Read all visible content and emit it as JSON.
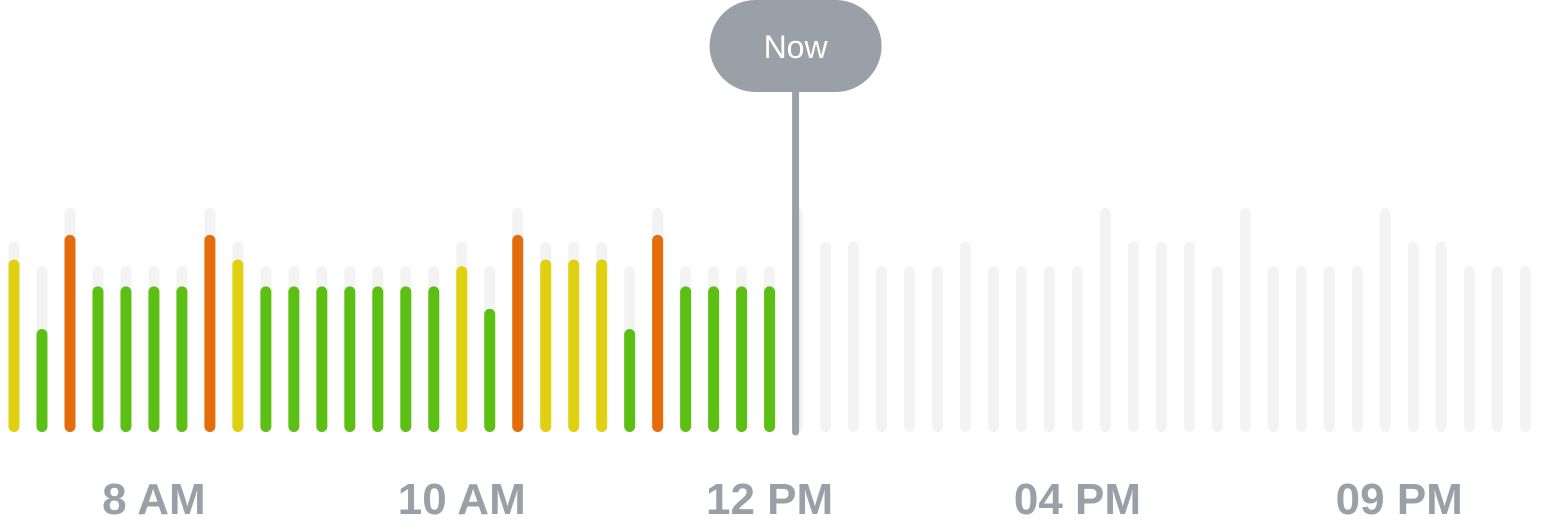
{
  "chart_data": {
    "type": "bar",
    "title": "",
    "xlabel": "",
    "ylabel": "",
    "ylim": [
      0,
      10
    ],
    "now_label": "Now",
    "now_index": 28,
    "x_ticks": [
      {
        "label": "8 AM",
        "index": 5
      },
      {
        "label": "10 AM",
        "index": 16
      },
      {
        "label": "12 PM",
        "index": 27
      },
      {
        "label": "04 PM",
        "index": 38
      },
      {
        "label": "09 PM",
        "index": 49.5
      }
    ],
    "capacity": [
      8.5,
      7.4,
      10,
      7.4,
      7.4,
      7.4,
      7.4,
      10,
      8.5,
      7.4,
      7.4,
      7.4,
      7.4,
      7.4,
      7.4,
      7.4,
      8.5,
      7.4,
      10,
      8.5,
      8.5,
      8.5,
      7.4,
      10,
      7.4,
      7.4,
      7.4,
      7.4,
      10,
      8.5,
      8.5,
      7.4,
      7.4,
      7.4,
      8.5,
      7.4,
      7.4,
      7.4,
      7.4,
      10,
      8.5,
      8.5,
      8.5,
      7.4,
      10,
      7.4,
      7.4,
      7.4,
      7.4,
      10,
      8.5,
      8.5,
      7.4,
      7.4,
      7.4
    ],
    "values": [
      7.7,
      4.6,
      8.8,
      6.5,
      6.5,
      6.5,
      6.5,
      8.8,
      7.7,
      6.5,
      6.5,
      6.5,
      6.5,
      6.5,
      6.5,
      6.5,
      7.4,
      5.5,
      8.8,
      7.7,
      7.7,
      7.7,
      4.6,
      8.8,
      6.5,
      6.5,
      6.5,
      6.5
    ],
    "levels": [
      "yellow",
      "green",
      "orange",
      "green",
      "green",
      "green",
      "green",
      "orange",
      "yellow",
      "green",
      "green",
      "green",
      "green",
      "green",
      "green",
      "green",
      "yellow",
      "green",
      "orange",
      "yellow",
      "yellow",
      "yellow",
      "green",
      "orange",
      "green",
      "green",
      "green",
      "green"
    ],
    "colors": {
      "green": "#5cbf14",
      "yellow": "#e0d010",
      "orange": "#e46c0a",
      "track": "#f3f3f3",
      "now": "#9aa0a7",
      "axis_text": "#9aa0a7"
    }
  }
}
